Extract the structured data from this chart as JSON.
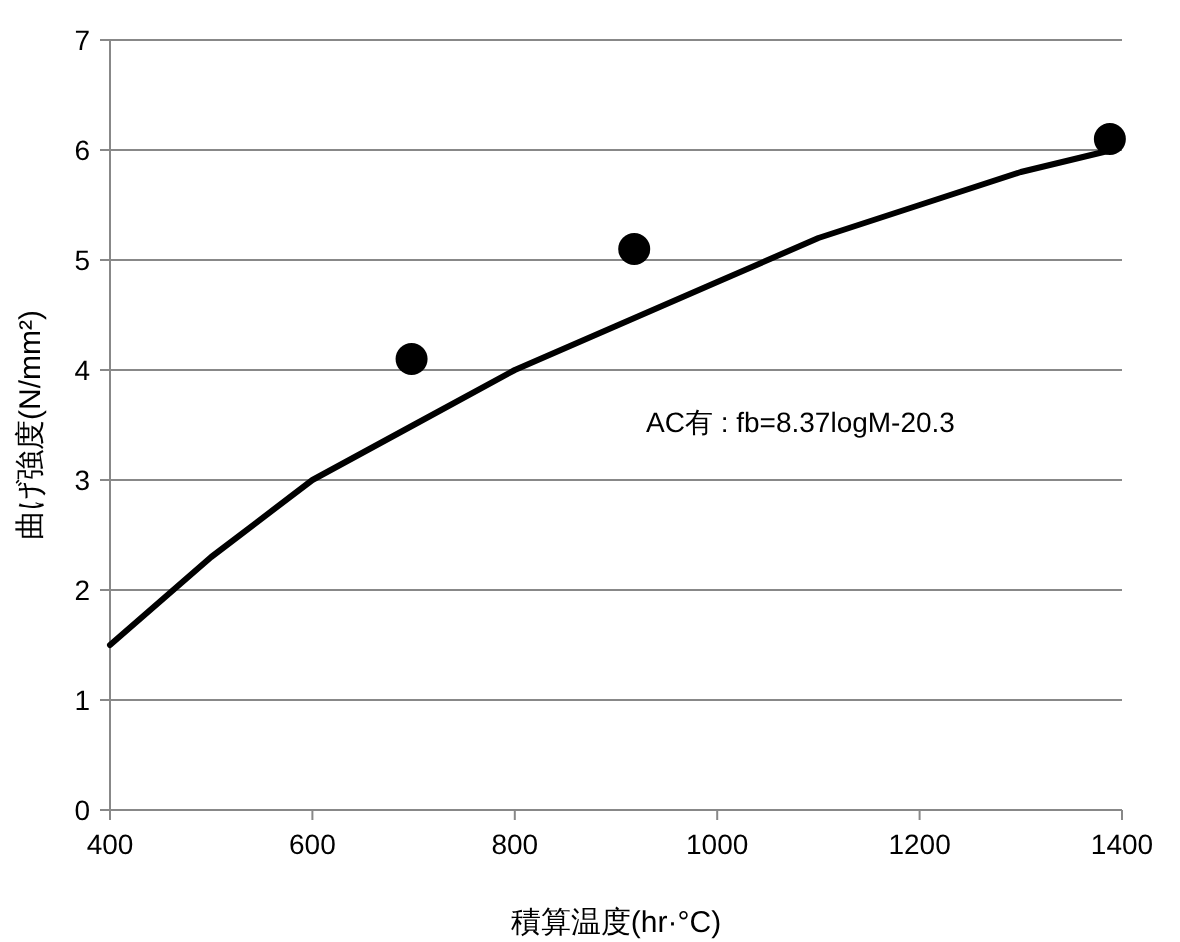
{
  "chart_data": {
    "type": "scatter",
    "xlabel": "積算温度(hr·°C)",
    "ylabel": "曲げ強度(N/mm²)",
    "xlim": [
      400,
      1400
    ],
    "xticks": [
      400,
      600,
      800,
      1000,
      1200,
      1400
    ],
    "ylim": [
      0,
      7
    ],
    "yticks": [
      0,
      1,
      2,
      3,
      4,
      5,
      6,
      7
    ],
    "grid": "y",
    "series": [
      {
        "type": "scatter",
        "color": "#000000",
        "marker": "circle",
        "x": [
          698,
          918,
          1388
        ],
        "values": [
          4.1,
          5.1,
          6.1
        ]
      },
      {
        "type": "line",
        "color": "#000000",
        "line_style": "solid",
        "x": [
          400,
          500,
          600,
          700,
          800,
          900,
          1000,
          1100,
          1200,
          1300,
          1390
        ],
        "values": [
          1.5,
          2.3,
          3.0,
          3.5,
          4.0,
          4.4,
          4.8,
          5.2,
          5.5,
          5.8,
          6.0
        ]
      }
    ],
    "annotations": [
      "AC有 : fb=8.37logM-20.3"
    ]
  }
}
